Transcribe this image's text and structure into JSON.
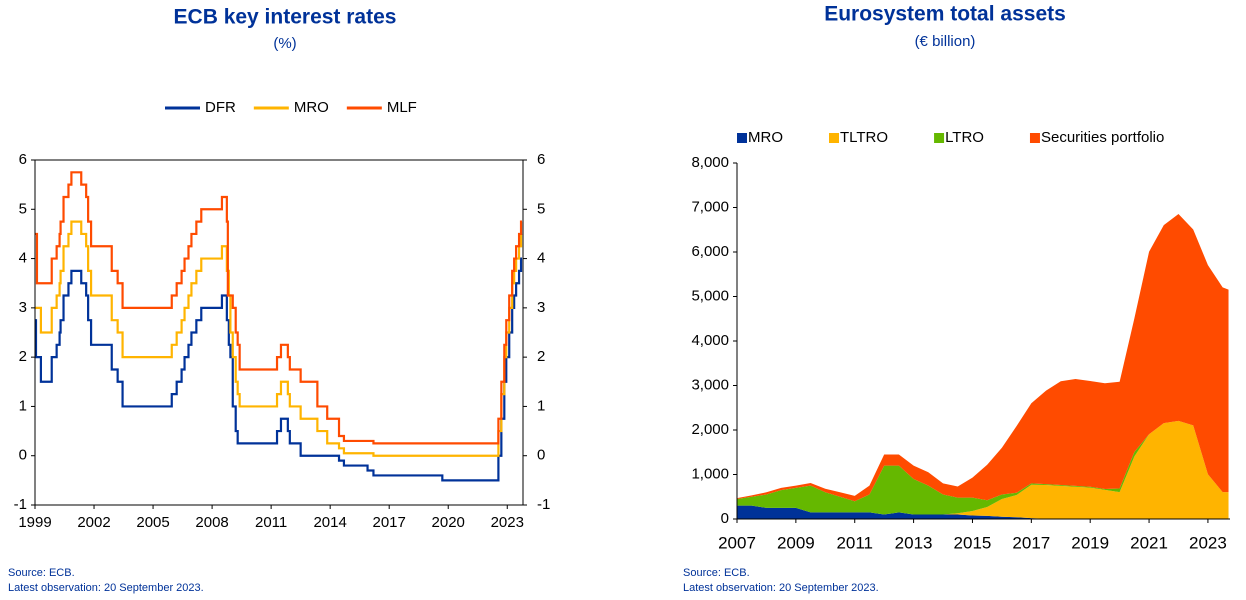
{
  "chart_data": [
    {
      "type": "line",
      "title": "ECB key interest rates",
      "subtitle": "(%)",
      "xlim": [
        1999,
        2023.8
      ],
      "xticks": [
        1999,
        2002,
        2005,
        2008,
        2011,
        2014,
        2017,
        2020,
        2023
      ],
      "ylim": [
        -1,
        6
      ],
      "yticks": [
        -1,
        0,
        1,
        2,
        3,
        4,
        5,
        6
      ],
      "y2lim": [
        -1,
        6
      ],
      "y2ticks": [
        -1,
        0,
        1,
        2,
        3,
        4,
        5,
        6
      ],
      "legend": "top",
      "step": true,
      "series": [
        {
          "name": "DFR",
          "color": "#003299",
          "x": [
            1999.0,
            1999.05,
            1999.3,
            1999.85,
            2000.1,
            2000.25,
            2000.3,
            2000.45,
            2000.7,
            2000.85,
            2001.35,
            2001.6,
            2001.7,
            2001.85,
            2002.9,
            2003.2,
            2003.45,
            2005.95,
            2006.2,
            2006.45,
            2006.6,
            2006.8,
            2006.95,
            2007.2,
            2007.45,
            2008.5,
            2008.75,
            2008.85,
            2008.93,
            2009.05,
            2009.2,
            2009.3,
            2011.3,
            2011.5,
            2011.85,
            2011.95,
            2012.5,
            2014.45,
            2014.7,
            2015.9,
            2016.2,
            2019.7,
            2022.55,
            2022.7,
            2022.85,
            2022.95,
            2023.1,
            2023.25,
            2023.35,
            2023.45,
            2023.6,
            2023.7,
            2023.75
          ],
          "values": [
            2.75,
            2.0,
            1.5,
            2.0,
            2.25,
            2.5,
            2.75,
            3.25,
            3.5,
            3.75,
            3.5,
            3.25,
            2.75,
            2.25,
            1.75,
            1.5,
            1.0,
            1.25,
            1.5,
            1.75,
            2.0,
            2.25,
            2.5,
            2.75,
            3.0,
            3.25,
            2.75,
            2.25,
            2.0,
            1.0,
            0.5,
            0.25,
            0.5,
            0.75,
            0.5,
            0.25,
            0.0,
            -0.1,
            -0.2,
            -0.3,
            -0.4,
            -0.5,
            0.0,
            0.75,
            1.5,
            2.0,
            2.5,
            3.0,
            3.25,
            3.5,
            3.75,
            4.0,
            4.0
          ]
        },
        {
          "name": "MRO",
          "color": "#ffb400",
          "x": [
            1999.0,
            1999.3,
            1999.85,
            2000.1,
            2000.25,
            2000.3,
            2000.45,
            2000.7,
            2000.85,
            2001.35,
            2001.6,
            2001.7,
            2001.85,
            2002.9,
            2003.2,
            2003.45,
            2005.95,
            2006.2,
            2006.45,
            2006.6,
            2006.8,
            2006.95,
            2007.2,
            2007.45,
            2008.5,
            2008.75,
            2008.85,
            2008.93,
            2009.05,
            2009.2,
            2009.3,
            2009.4,
            2011.3,
            2011.5,
            2011.85,
            2011.95,
            2012.5,
            2013.35,
            2013.85,
            2014.45,
            2014.7,
            2016.2,
            2022.55,
            2022.7,
            2022.85,
            2022.95,
            2023.1,
            2023.25,
            2023.35,
            2023.45,
            2023.6,
            2023.7,
            2023.75
          ],
          "values": [
            3.0,
            2.5,
            3.0,
            3.25,
            3.5,
            3.75,
            4.25,
            4.5,
            4.75,
            4.5,
            4.25,
            3.75,
            3.25,
            2.75,
            2.5,
            2.0,
            2.25,
            2.5,
            2.75,
            3.0,
            3.25,
            3.5,
            3.75,
            4.0,
            4.25,
            3.75,
            3.25,
            2.5,
            2.0,
            1.5,
            1.25,
            1.0,
            1.25,
            1.5,
            1.25,
            1.0,
            0.75,
            0.5,
            0.25,
            0.15,
            0.05,
            0.0,
            0.5,
            1.25,
            2.0,
            2.5,
            3.0,
            3.5,
            3.75,
            4.0,
            4.25,
            4.5,
            4.5
          ]
        },
        {
          "name": "MLF",
          "color": "#ff4b00",
          "x": [
            1999.0,
            1999.1,
            1999.85,
            2000.1,
            2000.25,
            2000.3,
            2000.45,
            2000.7,
            2000.85,
            2001.35,
            2001.6,
            2001.7,
            2001.85,
            2002.9,
            2003.2,
            2003.45,
            2005.95,
            2006.2,
            2006.45,
            2006.6,
            2006.8,
            2006.95,
            2007.2,
            2007.45,
            2008.5,
            2008.75,
            2008.8,
            2009.05,
            2009.2,
            2009.3,
            2009.4,
            2011.3,
            2011.5,
            2011.85,
            2011.95,
            2012.5,
            2013.35,
            2013.85,
            2014.45,
            2014.7,
            2016.2,
            2022.55,
            2022.7,
            2022.85,
            2022.95,
            2023.1,
            2023.25,
            2023.35,
            2023.45,
            2023.6,
            2023.7,
            2023.75
          ],
          "values": [
            4.5,
            3.5,
            4.0,
            4.25,
            4.5,
            4.75,
            5.25,
            5.5,
            5.75,
            5.5,
            5.25,
            4.75,
            4.25,
            3.75,
            3.5,
            3.0,
            3.25,
            3.5,
            3.75,
            4.0,
            4.25,
            4.5,
            4.75,
            5.0,
            5.25,
            4.75,
            3.25,
            3.0,
            2.5,
            2.25,
            1.75,
            2.0,
            2.25,
            2.0,
            1.75,
            1.5,
            1.0,
            0.75,
            0.4,
            0.3,
            0.25,
            0.75,
            1.5,
            2.25,
            2.75,
            3.25,
            3.75,
            4.0,
            4.25,
            4.5,
            4.75,
            4.75
          ]
        }
      ],
      "notes": [
        "Source: ECB.",
        "Latest observation: 20 September 2023."
      ]
    },
    {
      "type": "area",
      "title": "Eurosystem total assets",
      "subtitle": "(€ billion)",
      "stacked": true,
      "xlim": [
        2007,
        2023.75
      ],
      "xticks": [
        2007,
        2009,
        2011,
        2013,
        2015,
        2017,
        2019,
        2021,
        2023
      ],
      "ylim": [
        0,
        8000
      ],
      "yticks": [
        0,
        {
          "value": 1000,
          "label": "1,000"
        },
        {
          "value": 2000,
          "label": "2,000"
        },
        {
          "value": 3000,
          "label": "3,000"
        },
        {
          "value": 4000,
          "label": "4,000"
        },
        {
          "value": 5000,
          "label": "5,000"
        },
        {
          "value": 6000,
          "label": "6,000"
        },
        {
          "value": 7000,
          "label": "7,000"
        },
        {
          "value": 8000,
          "label": "8,000"
        }
      ],
      "legend": "top",
      "x": [
        2007,
        2007.5,
        2008,
        2008.5,
        2009,
        2009.5,
        2010,
        2010.5,
        2011,
        2011.5,
        2012,
        2012.5,
        2013,
        2013.5,
        2014,
        2014.5,
        2015,
        2015.5,
        2016,
        2016.5,
        2017,
        2017.5,
        2018,
        2018.5,
        2019,
        2019.5,
        2020,
        2020.5,
        2021,
        2021.5,
        2022,
        2022.5,
        2023,
        2023.5,
        2023.7
      ],
      "series": [
        {
          "name": "MRO",
          "color": "#003299",
          "values": [
            300,
            300,
            250,
            250,
            250,
            150,
            150,
            150,
            150,
            150,
            100,
            150,
            100,
            100,
            100,
            100,
            80,
            70,
            50,
            40,
            20,
            5,
            5,
            5,
            5,
            5,
            5,
            5,
            5,
            5,
            5,
            5,
            5,
            5,
            5
          ]
        },
        {
          "name": "TLTRO",
          "color": "#ffb400",
          "values": [
            0,
            0,
            0,
            0,
            0,
            0,
            0,
            0,
            0,
            0,
            0,
            0,
            0,
            0,
            0,
            30,
            100,
            200,
            400,
            500,
            750,
            760,
            740,
            720,
            700,
            650,
            600,
            1400,
            1900,
            2150,
            2200,
            2100,
            1000,
            600,
            600
          ]
        },
        {
          "name": "LTRO",
          "color": "#65b800",
          "values": [
            150,
            200,
            300,
            400,
            450,
            600,
            450,
            350,
            250,
            400,
            1100,
            1050,
            800,
            650,
            450,
            350,
            300,
            150,
            100,
            50,
            30,
            20,
            20,
            20,
            20,
            20,
            80,
            100,
            0,
            0,
            0,
            0,
            0,
            0,
            0
          ]
        },
        {
          "name": "Securities portfolio",
          "color": "#ff4b00",
          "values": [
            20,
            30,
            50,
            50,
            50,
            60,
            80,
            100,
            120,
            200,
            250,
            250,
            300,
            300,
            250,
            250,
            450,
            800,
            1050,
            1500,
            1800,
            2100,
            2330,
            2400,
            2375,
            2375,
            2400,
            3000,
            4100,
            4450,
            4650,
            4400,
            4700,
            4600,
            4550
          ]
        }
      ],
      "notes": [
        "Source: ECB.",
        "Latest observation: 20 September 2023."
      ]
    }
  ]
}
